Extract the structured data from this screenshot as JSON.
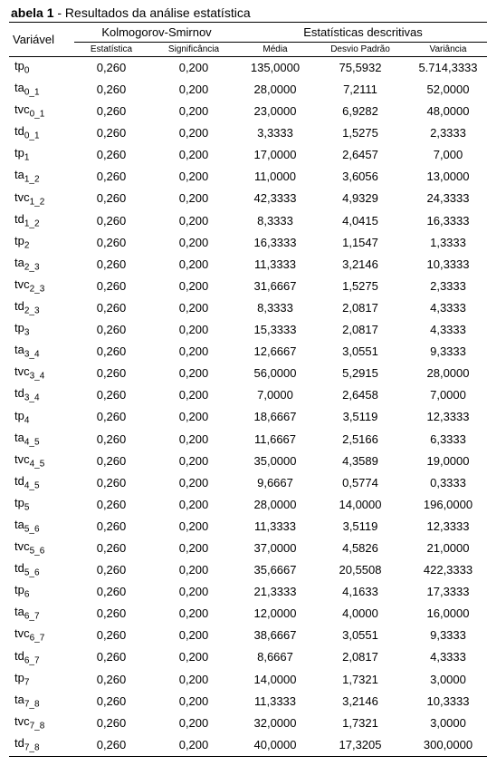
{
  "caption_prefix": "abela 1",
  "caption_rest": " - Resultados da análise estatística",
  "headers": {
    "variavel": "Variável",
    "ks": "Kolmogorov-Smirnov",
    "estat": "Estatística",
    "signif": "Significância",
    "descr": "Estatísticas descritivas",
    "media": "Média",
    "desvio": "Desvio Padrão",
    "variancia": "Variância"
  },
  "rows": [
    {
      "var_base": "tp",
      "var_sub": "0",
      "est": "0,260",
      "sig": "0,200",
      "media": "135,0000",
      "dp": "75,5932",
      "var": "5.714,3333"
    },
    {
      "var_base": "ta",
      "var_sub": "0_1",
      "est": "0,260",
      "sig": "0,200",
      "media": "28,0000",
      "dp": "7,2111",
      "var": "52,0000"
    },
    {
      "var_base": "tvc",
      "var_sub": "0_1",
      "est": "0,260",
      "sig": "0,200",
      "media": "23,0000",
      "dp": "6,9282",
      "var": "48,0000"
    },
    {
      "var_base": "td",
      "var_sub": "0_1",
      "est": "0,260",
      "sig": "0,200",
      "media": "3,3333",
      "dp": "1,5275",
      "var": "2,3333"
    },
    {
      "var_base": "tp",
      "var_sub": "1",
      "est": "0,260",
      "sig": "0,200",
      "media": "17,0000",
      "dp": "2,6457",
      "var": "7,000"
    },
    {
      "var_base": "ta",
      "var_sub": "1_2",
      "est": "0,260",
      "sig": "0,200",
      "media": "11,0000",
      "dp": "3,6056",
      "var": "13,0000"
    },
    {
      "var_base": "tvc",
      "var_sub": "1_2",
      "est": "0,260",
      "sig": "0,200",
      "media": "42,3333",
      "dp": "4,9329",
      "var": "24,3333"
    },
    {
      "var_base": "td",
      "var_sub": "1_2",
      "est": "0,260",
      "sig": "0,200",
      "media": "8,3333",
      "dp": "4,0415",
      "var": "16,3333"
    },
    {
      "var_base": "tp",
      "var_sub": "2",
      "est": "0,260",
      "sig": "0,200",
      "media": "16,3333",
      "dp": "1,1547",
      "var": "1,3333"
    },
    {
      "var_base": "ta",
      "var_sub": "2_3",
      "est": "0,260",
      "sig": "0,200",
      "media": "11,3333",
      "dp": "3,2146",
      "var": "10,3333"
    },
    {
      "var_base": "tvc",
      "var_sub": "2_3",
      "est": "0,260",
      "sig": "0,200",
      "media": "31,6667",
      "dp": "1,5275",
      "var": "2,3333"
    },
    {
      "var_base": "td",
      "var_sub": "2_3",
      "est": "0,260",
      "sig": "0,200",
      "media": "8,3333",
      "dp": "2,0817",
      "var": "4,3333"
    },
    {
      "var_base": "tp",
      "var_sub": "3",
      "est": "0,260",
      "sig": "0,200",
      "media": "15,3333",
      "dp": "2,0817",
      "var": "4,3333"
    },
    {
      "var_base": "ta",
      "var_sub": "3_4",
      "est": "0,260",
      "sig": "0,200",
      "media": "12,6667",
      "dp": "3,0551",
      "var": "9,3333"
    },
    {
      "var_base": "tvc",
      "var_sub": "3_4",
      "est": "0,260",
      "sig": "0,200",
      "media": "56,0000",
      "dp": "5,2915",
      "var": "28,0000"
    },
    {
      "var_base": "td",
      "var_sub": "3_4",
      "est": "0,260",
      "sig": "0,200",
      "media": "7,0000",
      "dp": "2,6458",
      "var": "7,0000"
    },
    {
      "var_base": "tp",
      "var_sub": "4",
      "est": "0,260",
      "sig": "0,200",
      "media": "18,6667",
      "dp": "3,5119",
      "var": "12,3333"
    },
    {
      "var_base": "ta",
      "var_sub": "4_5",
      "est": "0,260",
      "sig": "0,200",
      "media": "11,6667",
      "dp": "2,5166",
      "var": "6,3333"
    },
    {
      "var_base": "tvc",
      "var_sub": "4_5",
      "est": "0,260",
      "sig": "0,200",
      "media": "35,0000",
      "dp": "4,3589",
      "var": "19,0000"
    },
    {
      "var_base": "td",
      "var_sub": "4_5",
      "est": "0,260",
      "sig": "0,200",
      "media": "9,6667",
      "dp": "0,5774",
      "var": "0,3333"
    },
    {
      "var_base": "tp",
      "var_sub": "5",
      "est": "0,260",
      "sig": "0,200",
      "media": "28,0000",
      "dp": "14,0000",
      "var": "196,0000"
    },
    {
      "var_base": "ta",
      "var_sub": "5_6",
      "est": "0,260",
      "sig": "0,200",
      "media": "11,3333",
      "dp": "3,5119",
      "var": "12,3333"
    },
    {
      "var_base": "tvc",
      "var_sub": "5_6",
      "est": "0,260",
      "sig": "0,200",
      "media": "37,0000",
      "dp": "4,5826",
      "var": "21,0000"
    },
    {
      "var_base": "td",
      "var_sub": "5_6",
      "est": "0,260",
      "sig": "0,200",
      "media": "35,6667",
      "dp": "20,5508",
      "var": "422,3333"
    },
    {
      "var_base": "tp",
      "var_sub": "6",
      "est": "0,260",
      "sig": "0,200",
      "media": "21,3333",
      "dp": "4,1633",
      "var": "17,3333"
    },
    {
      "var_base": "ta",
      "var_sub": "6_7",
      "est": "0,260",
      "sig": "0,200",
      "media": "12,0000",
      "dp": "4,0000",
      "var": "16,0000"
    },
    {
      "var_base": "tvc",
      "var_sub": "6_7",
      "est": "0,260",
      "sig": "0,200",
      "media": "38,6667",
      "dp": "3,0551",
      "var": "9,3333"
    },
    {
      "var_base": "td",
      "var_sub": "6_7",
      "est": "0,260",
      "sig": "0,200",
      "media": "8,6667",
      "dp": "2,0817",
      "var": "4,3333"
    },
    {
      "var_base": "tp",
      "var_sub": "7",
      "est": "0,260",
      "sig": "0,200",
      "media": "14,0000",
      "dp": "1,7321",
      "var": "3,0000"
    },
    {
      "var_base": "ta",
      "var_sub": "7_8",
      "est": "0,260",
      "sig": "0,200",
      "media": "11,3333",
      "dp": "3,2146",
      "var": "10,3333"
    },
    {
      "var_base": "tvc",
      "var_sub": "7_8",
      "est": "0,260",
      "sig": "0,200",
      "media": "32,0000",
      "dp": "1,7321",
      "var": "3,0000"
    },
    {
      "var_base": "td",
      "var_sub": "7_8",
      "est": "0,260",
      "sig": "0,200",
      "media": "40,0000",
      "dp": "17,3205",
      "var": "300,0000"
    }
  ]
}
